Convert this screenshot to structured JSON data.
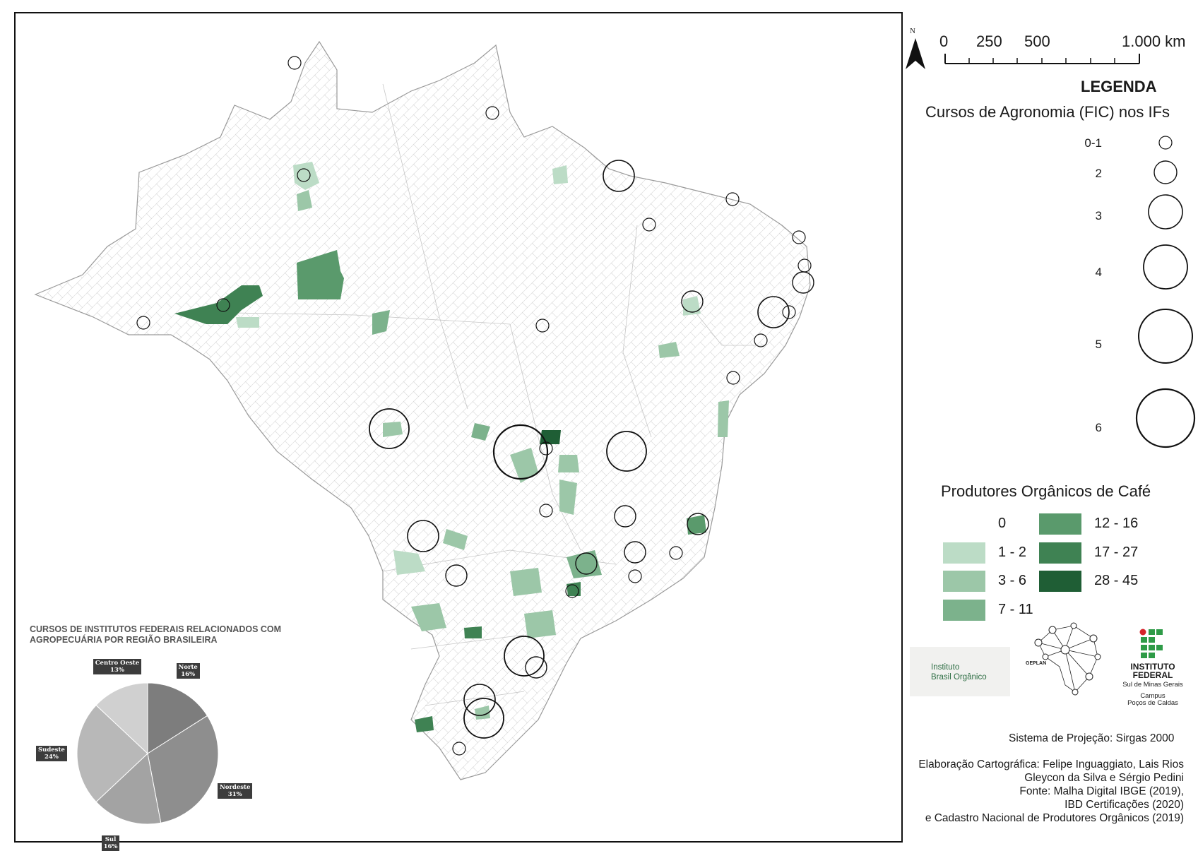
{
  "map": {
    "north_label": "N",
    "scale": {
      "labels": [
        "0",
        "250",
        "500",
        "1.000 km"
      ]
    },
    "legend": {
      "title": "LEGENDA",
      "circles_title": "Cursos de Agronomia (FIC) nos IFs",
      "circle_classes": [
        "0-1",
        "2",
        "3",
        "4",
        "5",
        "6"
      ],
      "producers_title": "Produtores Orgânicos de Café",
      "producer_classes": [
        {
          "label": "0",
          "color": "#ffffff"
        },
        {
          "label": "1 - 2",
          "color": "#bcdcc6"
        },
        {
          "label": "3 - 6",
          "color": "#9cc7a8"
        },
        {
          "label": "7 - 11",
          "color": "#7cb28c"
        },
        {
          "label": "12 - 16",
          "color": "#5a9a6c"
        },
        {
          "label": "17 - 27",
          "color": "#3f8253"
        },
        {
          "label": "28 - 45",
          "color": "#1f5e35"
        }
      ]
    },
    "municipalities": [
      {
        "class": 1
      },
      {
        "class": 2
      },
      {
        "class": 3
      },
      {
        "class": 4
      },
      {
        "class": 5
      },
      {
        "class": 6
      }
    ],
    "if_courses": [
      {
        "courses": "0-1"
      },
      {
        "courses": "2"
      },
      {
        "courses": "3"
      },
      {
        "courses": "4"
      },
      {
        "courses": "5"
      },
      {
        "courses": "6"
      }
    ]
  },
  "logos": {
    "ibo_line1": "Instituto",
    "ibo_line2": "Brasil Orgânico",
    "geplan_name": "GEPLAN",
    "if_name_line1": "INSTITUTO",
    "if_name_line2": "FEDERAL",
    "if_sub1": "Sul de Minas Gerais",
    "if_sub2": "Campus",
    "if_sub3": "Poços de Caldas"
  },
  "projection": "Sistema de Projeção: Sirgas 2000",
  "credits": [
    "Elaboração Cartográfica: Felipe Inguaggiato, Lais Rios",
    "Gleycon da Silva e Sérgio Pedini",
    "Fonte: Malha Digital IBGE (2019),",
    "IBD Certificações (2020)",
    "e Cadastro Nacional de Produtores Orgânicos (2019)"
  ],
  "chart_data": {
    "type": "pie",
    "title": "CURSOS DE INSTITUTOS FEDERAIS RELACIONADOS  COM AGROPECUÁRIA POR REGIÃO BRASILEIRA",
    "title_line1": "CURSOS DE INSTITUTOS FEDERAIS RELACIONADOS  COM",
    "title_line2": "AGROPECUÁRIA POR REGIÃO BRASILEIRA",
    "slices": [
      {
        "label": "Norte",
        "value": 16,
        "text": "16%",
        "color": "#7d7d7d"
      },
      {
        "label": "Nordeste",
        "value": 31,
        "text": "31%",
        "color": "#8e8e8e"
      },
      {
        "label": "Sul",
        "value": 16,
        "text": "16%",
        "color": "#a3a3a3"
      },
      {
        "label": "Sudeste",
        "value": 24,
        "text": "24%",
        "color": "#b8b8b8"
      },
      {
        "label": "Centro Oeste",
        "value": 13,
        "text": "13%",
        "color": "#d0d0d0"
      }
    ]
  }
}
